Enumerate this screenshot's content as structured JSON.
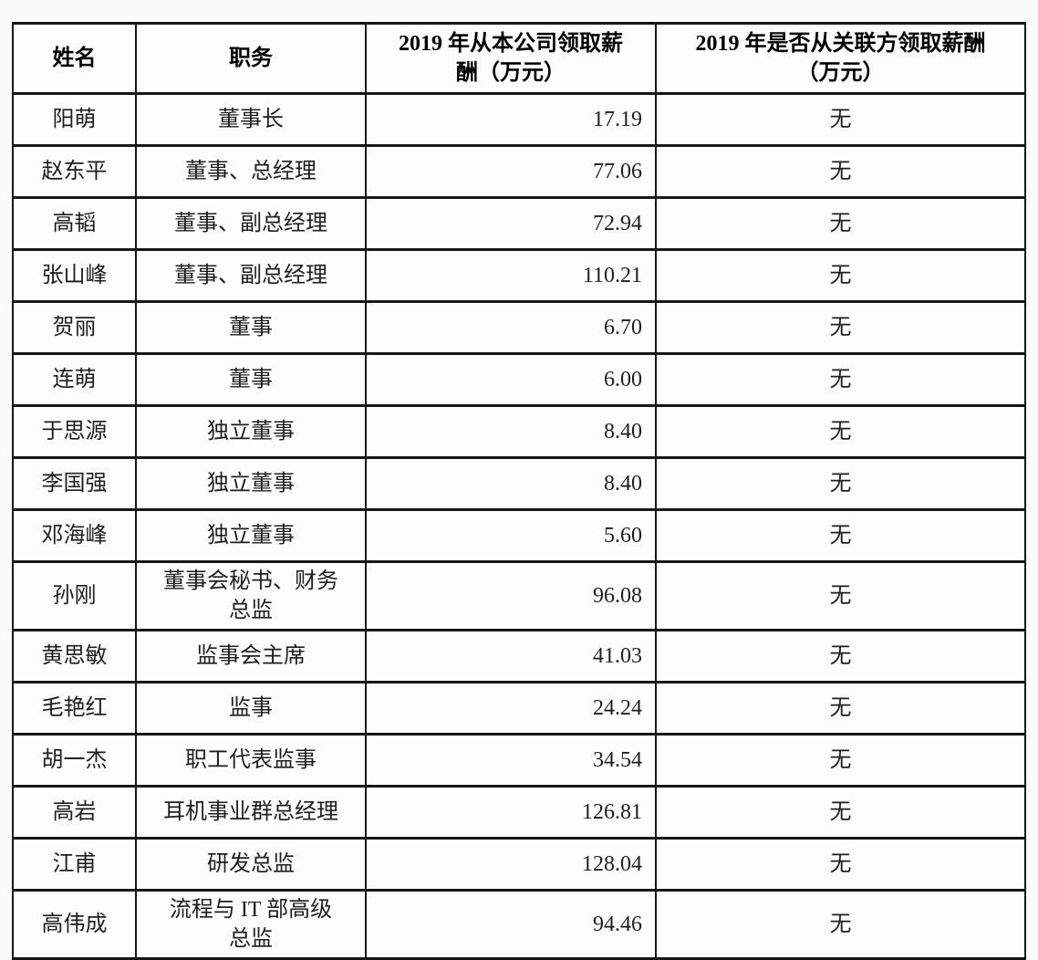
{
  "table": {
    "columns": [
      {
        "key": "name",
        "label": "姓名"
      },
      {
        "key": "position",
        "label": "职务"
      },
      {
        "key": "salary",
        "label": "2019 年从本公司领取薪\n酬（万元）"
      },
      {
        "key": "related",
        "label": "2019 年是否从关联方领取薪酬\n（万元）"
      }
    ],
    "rows": [
      {
        "name": "阳萌",
        "position": "董事长",
        "salary": "17.19",
        "related": "无"
      },
      {
        "name": "赵东平",
        "position": "董事、总经理",
        "salary": "77.06",
        "related": "无"
      },
      {
        "name": "高韬",
        "position": "董事、副总经理",
        "salary": "72.94",
        "related": "无"
      },
      {
        "name": "张山峰",
        "position": "董事、副总经理",
        "salary": "110.21",
        "related": "无"
      },
      {
        "name": "贺丽",
        "position": "董事",
        "salary": "6.70",
        "related": "无"
      },
      {
        "name": "连萌",
        "position": "董事",
        "salary": "6.00",
        "related": "无"
      },
      {
        "name": "于思源",
        "position": "独立董事",
        "salary": "8.40",
        "related": "无"
      },
      {
        "name": "李国强",
        "position": "独立董事",
        "salary": "8.40",
        "related": "无"
      },
      {
        "name": "邓海峰",
        "position": "独立董事",
        "salary": "5.60",
        "related": "无"
      },
      {
        "name": "孙刚",
        "position": "董事会秘书、财务\n总监",
        "salary": "96.08",
        "related": "无"
      },
      {
        "name": "黄思敏",
        "position": "监事会主席",
        "salary": "41.03",
        "related": "无"
      },
      {
        "name": "毛艳红",
        "position": "监事",
        "salary": "24.24",
        "related": "无"
      },
      {
        "name": "胡一杰",
        "position": "职工代表监事",
        "salary": "34.54",
        "related": "无"
      },
      {
        "name": "高岩",
        "position": "耳机事业群总经理",
        "salary": "126.81",
        "related": "无"
      },
      {
        "name": "江甫",
        "position": "研发总监",
        "salary": "128.04",
        "related": "无"
      },
      {
        "name": "高伟成",
        "position": "流程与 IT 部高级\n总监",
        "salary": "94.46",
        "related": "无"
      }
    ]
  }
}
